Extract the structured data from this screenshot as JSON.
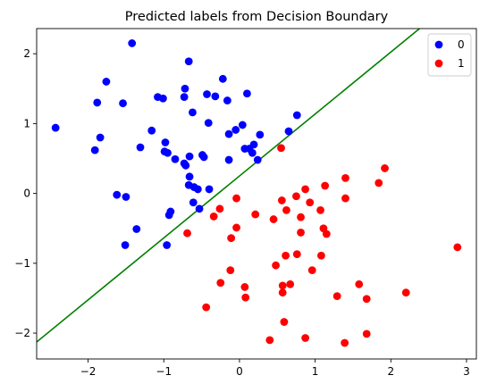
{
  "chart_data": {
    "type": "scatter",
    "title": "Predicted labels from Decision Boundary",
    "xlabel": "",
    "ylabel": "",
    "xlim": [
      -2.68,
      3.13
    ],
    "ylim": [
      -2.37,
      2.36
    ],
    "x_ticks": [
      -2,
      -1,
      0,
      1,
      2,
      3
    ],
    "x_tick_labels": [
      "−2",
      "−1",
      "0",
      "1",
      "2",
      "3"
    ],
    "y_ticks": [
      -2,
      -1,
      0,
      1,
      2
    ],
    "y_tick_labels": [
      "−2",
      "−1",
      "0",
      "1",
      "2"
    ],
    "grid": false,
    "legend_position": "top-right",
    "series": [
      {
        "name": "0",
        "color": "#0000ff",
        "points": [
          [
            -1.42,
            2.15
          ],
          [
            -0.67,
            1.89
          ],
          [
            -0.22,
            1.64
          ],
          [
            -1.76,
            1.6
          ],
          [
            -0.72,
            1.5
          ],
          [
            0.1,
            1.43
          ],
          [
            -0.43,
            1.42
          ],
          [
            -0.32,
            1.39
          ],
          [
            -1.08,
            1.38
          ],
          [
            -1.01,
            1.36
          ],
          [
            -0.73,
            1.38
          ],
          [
            -0.16,
            1.33
          ],
          [
            -1.88,
            1.3
          ],
          [
            -1.54,
            1.29
          ],
          [
            -0.62,
            1.16
          ],
          [
            0.76,
            1.12
          ],
          [
            -2.43,
            0.94
          ],
          [
            -0.41,
            1.01
          ],
          [
            0.04,
            0.98
          ],
          [
            -0.05,
            0.91
          ],
          [
            0.65,
            0.89
          ],
          [
            -0.14,
            0.85
          ],
          [
            -1.16,
            0.9
          ],
          [
            0.27,
            0.84
          ],
          [
            -1.84,
            0.8
          ],
          [
            -0.98,
            0.73
          ],
          [
            0.19,
            0.7
          ],
          [
            -1.31,
            0.66
          ],
          [
            0.13,
            0.64
          ],
          [
            0.07,
            0.64
          ],
          [
            -1.91,
            0.62
          ],
          [
            -0.99,
            0.6
          ],
          [
            -0.95,
            0.58
          ],
          [
            0.17,
            0.58
          ],
          [
            -0.66,
            0.53
          ],
          [
            -0.47,
            0.52
          ],
          [
            -0.49,
            0.55
          ],
          [
            -0.85,
            0.49
          ],
          [
            -0.14,
            0.48
          ],
          [
            0.24,
            0.48
          ],
          [
            -0.73,
            0.43
          ],
          [
            -0.71,
            0.4
          ],
          [
            -0.66,
            0.24
          ],
          [
            -0.67,
            0.12
          ],
          [
            -0.6,
            0.09
          ],
          [
            -0.55,
            0.06
          ],
          [
            -0.4,
            0.06
          ],
          [
            -1.62,
            -0.02
          ],
          [
            -1.5,
            -0.05
          ],
          [
            -0.61,
            -0.13
          ],
          [
            -0.53,
            -0.22
          ],
          [
            -0.91,
            -0.26
          ],
          [
            -0.93,
            -0.31
          ],
          [
            -1.36,
            -0.51
          ],
          [
            -1.51,
            -0.74
          ],
          [
            -0.96,
            -0.74
          ]
        ]
      },
      {
        "name": "1",
        "color": "#ff0000",
        "points": [
          [
            0.55,
            0.65
          ],
          [
            1.92,
            0.36
          ],
          [
            1.4,
            0.22
          ],
          [
            1.84,
            0.15
          ],
          [
            1.13,
            0.11
          ],
          [
            0.87,
            0.06
          ],
          [
            0.75,
            -0.04
          ],
          [
            -0.04,
            -0.07
          ],
          [
            1.4,
            -0.07
          ],
          [
            0.56,
            -0.1
          ],
          [
            0.93,
            -0.13
          ],
          [
            0.62,
            -0.24
          ],
          [
            1.07,
            -0.24
          ],
          [
            -0.26,
            -0.22
          ],
          [
            0.21,
            -0.3
          ],
          [
            -0.34,
            -0.33
          ],
          [
            0.45,
            -0.37
          ],
          [
            0.81,
            -0.34
          ],
          [
            -0.04,
            -0.49
          ],
          [
            1.11,
            -0.5
          ],
          [
            -0.69,
            -0.57
          ],
          [
            0.81,
            -0.56
          ],
          [
            1.15,
            -0.58
          ],
          [
            -0.11,
            -0.64
          ],
          [
            2.88,
            -0.77
          ],
          [
            0.76,
            -0.87
          ],
          [
            0.61,
            -0.89
          ],
          [
            1.08,
            -0.89
          ],
          [
            0.48,
            -1.03
          ],
          [
            0.96,
            -1.1
          ],
          [
            -0.12,
            -1.1
          ],
          [
            1.58,
            -1.3
          ],
          [
            0.67,
            -1.3
          ],
          [
            -0.25,
            -1.28
          ],
          [
            0.07,
            -1.34
          ],
          [
            0.57,
            -1.32
          ],
          [
            0.57,
            -1.42
          ],
          [
            2.2,
            -1.42
          ],
          [
            1.29,
            -1.47
          ],
          [
            0.08,
            -1.49
          ],
          [
            1.68,
            -1.51
          ],
          [
            -0.44,
            -1.63
          ],
          [
            0.59,
            -1.84
          ],
          [
            1.68,
            -2.01
          ],
          [
            0.87,
            -2.07
          ],
          [
            0.4,
            -2.1
          ],
          [
            1.39,
            -2.14
          ]
        ]
      }
    ],
    "decision_boundary": {
      "color": "#008000",
      "slope": 0.887,
      "intercept": 0.25
    }
  }
}
